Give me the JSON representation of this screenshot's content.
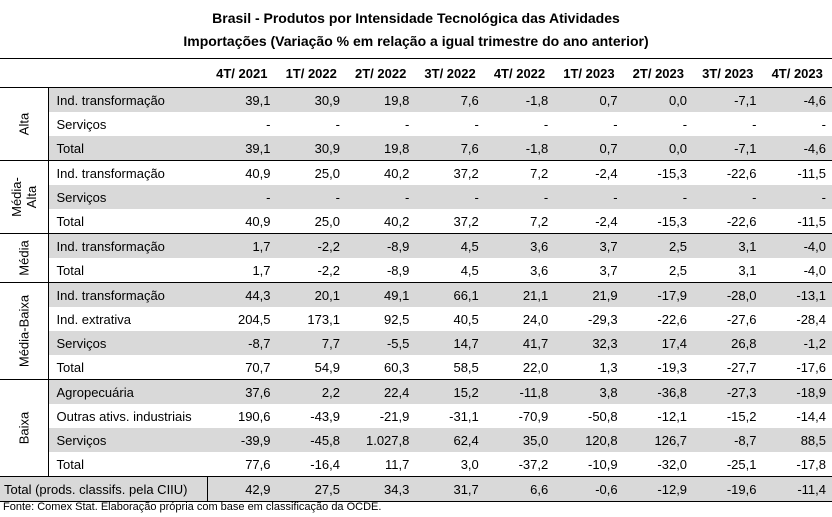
{
  "title": "Brasil - Produtos por Intensidade Tecnológica das Atividades",
  "subtitle": "Importações (Variação % em relação a igual trimestre do ano anterior)",
  "columns": [
    "4T/ 2021",
    "1T/ 2022",
    "2T/ 2022",
    "3T/ 2022",
    "4T/ 2022",
    "1T/ 2023",
    "2T/ 2023",
    "3T/ 2023",
    "4T/ 2023"
  ],
  "groups": [
    {
      "name": "Alta",
      "rows": [
        {
          "label": "Ind. transformação",
          "shaded": true,
          "values": [
            "39,1",
            "30,9",
            "19,8",
            "7,6",
            "-1,8",
            "0,7",
            "0,0",
            "-7,1",
            "-4,6"
          ]
        },
        {
          "label": "Serviços",
          "shaded": false,
          "values": [
            "-",
            "-",
            "-",
            "-",
            "-",
            "-",
            "-",
            "-",
            "-"
          ]
        },
        {
          "label": "Total",
          "shaded": true,
          "values": [
            "39,1",
            "30,9",
            "19,8",
            "7,6",
            "-1,8",
            "0,7",
            "0,0",
            "-7,1",
            "-4,6"
          ]
        }
      ]
    },
    {
      "name": "Média-\nAlta",
      "rows": [
        {
          "label": "Ind. transformação",
          "shaded": false,
          "values": [
            "40,9",
            "25,0",
            "40,2",
            "37,2",
            "7,2",
            "-2,4",
            "-15,3",
            "-22,6",
            "-11,5"
          ]
        },
        {
          "label": "Serviços",
          "shaded": true,
          "values": [
            "-",
            "-",
            "-",
            "-",
            "-",
            "-",
            "-",
            "-",
            "-"
          ]
        },
        {
          "label": "Total",
          "shaded": false,
          "values": [
            "40,9",
            "25,0",
            "40,2",
            "37,2",
            "7,2",
            "-2,4",
            "-15,3",
            "-22,6",
            "-11,5"
          ]
        }
      ]
    },
    {
      "name": "Média",
      "rows": [
        {
          "label": "Ind. transformação",
          "shaded": true,
          "values": [
            "1,7",
            "-2,2",
            "-8,9",
            "4,5",
            "3,6",
            "3,7",
            "2,5",
            "3,1",
            "-4,0"
          ]
        },
        {
          "label": "Total",
          "shaded": false,
          "values": [
            "1,7",
            "-2,2",
            "-8,9",
            "4,5",
            "3,6",
            "3,7",
            "2,5",
            "3,1",
            "-4,0"
          ]
        }
      ]
    },
    {
      "name": "Média-Baixa",
      "rows": [
        {
          "label": "Ind. transformação",
          "shaded": true,
          "values": [
            "44,3",
            "20,1",
            "49,1",
            "66,1",
            "21,1",
            "21,9",
            "-17,9",
            "-28,0",
            "-13,1"
          ]
        },
        {
          "label": "Ind. extrativa",
          "shaded": false,
          "values": [
            "204,5",
            "173,1",
            "92,5",
            "40,5",
            "24,0",
            "-29,3",
            "-22,6",
            "-27,6",
            "-28,4"
          ]
        },
        {
          "label": "Serviços",
          "shaded": true,
          "values": [
            "-8,7",
            "7,7",
            "-5,5",
            "14,7",
            "41,7",
            "32,3",
            "17,4",
            "26,8",
            "-1,2"
          ]
        },
        {
          "label": "Total",
          "shaded": false,
          "values": [
            "70,7",
            "54,9",
            "60,3",
            "58,5",
            "22,0",
            "1,3",
            "-19,3",
            "-27,7",
            "-17,6"
          ]
        }
      ]
    },
    {
      "name": "Baixa",
      "rows": [
        {
          "label": "Agropecuária",
          "shaded": true,
          "values": [
            "37,6",
            "2,2",
            "22,4",
            "15,2",
            "-11,8",
            "3,8",
            "-36,8",
            "-27,3",
            "-18,9"
          ]
        },
        {
          "label": "Outras ativs. industriais",
          "shaded": false,
          "values": [
            "190,6",
            "-43,9",
            "-21,9",
            "-31,1",
            "-70,9",
            "-50,8",
            "-12,1",
            "-15,2",
            "-14,4"
          ]
        },
        {
          "label": "Serviços",
          "shaded": true,
          "values": [
            "-39,9",
            "-45,8",
            "1.027,8",
            "62,4",
            "35,0",
            "120,8",
            "126,7",
            "-8,7",
            "88,5"
          ]
        },
        {
          "label": "Total",
          "shaded": false,
          "values": [
            "77,6",
            "-16,4",
            "11,7",
            "3,0",
            "-37,2",
            "-10,9",
            "-32,0",
            "-25,1",
            "-17,8"
          ]
        }
      ]
    }
  ],
  "total": {
    "label": "Total (prods. classifs. pela CIIU)",
    "shaded": true,
    "values": [
      "42,9",
      "27,5",
      "34,3",
      "31,7",
      "6,6",
      "-0,6",
      "-12,9",
      "-19,6",
      "-11,4"
    ]
  },
  "source": "Fonte: Comex Stat. Elaboração própria com base em classificação da OCDE.",
  "colors": {
    "shade": "#d9d9d9",
    "rule": "#000000"
  }
}
